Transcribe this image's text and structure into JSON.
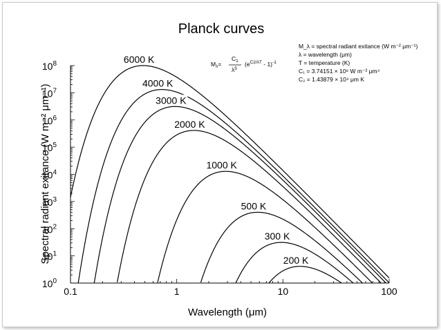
{
  "chart_data": {
    "type": "line",
    "title": "Planck curves",
    "xlabel": "Wavelength (μm)",
    "ylabel": "Spectral radiant exitance (W m⁻² μm⁻¹)",
    "x_scale": "log",
    "y_scale": "log",
    "xlim": [
      0.1,
      100
    ],
    "ylim": [
      1,
      100000000
    ],
    "grid": false,
    "x_ticks": [
      {
        "value": 0.1,
        "label": "0.1"
      },
      {
        "value": 1,
        "label": "1"
      },
      {
        "value": 10,
        "label": "10"
      },
      {
        "value": 100,
        "label": "100"
      }
    ],
    "y_ticks": [
      {
        "value": 1,
        "base": "10",
        "exp": "0"
      },
      {
        "value": 10,
        "base": "10",
        "exp": "1"
      },
      {
        "value": 100,
        "base": "10",
        "exp": "2"
      },
      {
        "value": 1000,
        "base": "10",
        "exp": "3"
      },
      {
        "value": 10000,
        "base": "10",
        "exp": "4"
      },
      {
        "value": 100000,
        "base": "10",
        "exp": "5"
      },
      {
        "value": 1000000,
        "base": "10",
        "exp": "6"
      },
      {
        "value": 10000000,
        "base": "10",
        "exp": "7"
      },
      {
        "value": 100000000,
        "base": "10",
        "exp": "8"
      }
    ],
    "series": [
      {
        "name": "6000 K",
        "temperature": 6000
      },
      {
        "name": "4000 K",
        "temperature": 4000
      },
      {
        "name": "3000 K",
        "temperature": 3000
      },
      {
        "name": "2000 K",
        "temperature": 2000
      },
      {
        "name": "1000 K",
        "temperature": 1000
      },
      {
        "name": "500 K",
        "temperature": 500
      },
      {
        "name": "300 K",
        "temperature": 300
      },
      {
        "name": "200 K",
        "temperature": 200
      }
    ],
    "constants": {
      "C1": 374151000,
      "C2": 14387.9
    },
    "formula": {
      "lhs": "M",
      "lhs_sub": "λ",
      "num": "C",
      "num_sub": "1",
      "den": "λ",
      "den_sup": "5",
      "paren_open": "(e",
      "exp_text": "C2/λT",
      "paren_close": " - 1)",
      "outer_exp": "-1"
    },
    "legend_notes": [
      "M_λ = spectral radiant exitance (W m⁻² μm⁻¹)",
      "λ = wavelength (μm)",
      "T = temperature (K)",
      "C₁ = 3.74151 × 10⁸ W m⁻² μm⁴",
      "C₂ = 1.43879 × 10⁴ μm K"
    ]
  }
}
